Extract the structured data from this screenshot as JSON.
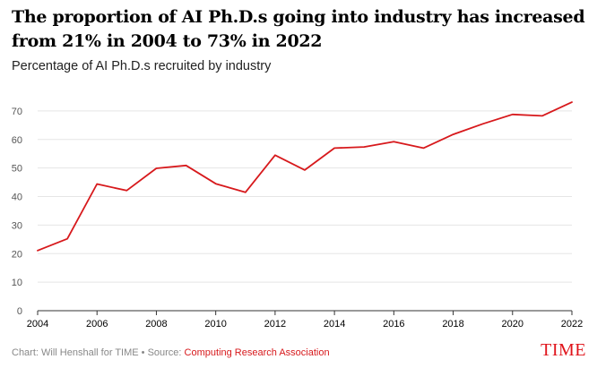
{
  "chart_data": {
    "type": "line",
    "title": "The proportion of AI Ph.D.s going into industry has increased from 21% in 2004 to 73% in 2022",
    "subtitle": "Percentage of AI Ph.D.s recruited by industry",
    "xlabel": "",
    "ylabel": "",
    "x": [
      2004,
      2005,
      2006,
      2007,
      2008,
      2009,
      2010,
      2011,
      2012,
      2013,
      2014,
      2015,
      2016,
      2017,
      2018,
      2019,
      2020,
      2021,
      2022
    ],
    "series": [
      {
        "name": "Percentage of AI Ph.D.s recruited by industry",
        "color": "#d7191c",
        "values": [
          21.1,
          25.2,
          44.4,
          42.1,
          49.9,
          50.9,
          44.5,
          41.5,
          54.5,
          49.3,
          57.0,
          57.4,
          59.2,
          57.0,
          61.8,
          65.5,
          68.8,
          68.3,
          73.1
        ]
      }
    ],
    "ylim": [
      0,
      75
    ],
    "xlim": [
      2004,
      2022
    ],
    "yticks": [
      "0",
      "10",
      "20",
      "30",
      "40",
      "50",
      "60",
      "70"
    ],
    "xticks": [
      "2004",
      "2006",
      "2008",
      "2010",
      "2012",
      "2014",
      "2016",
      "2018",
      "2020",
      "2022"
    ],
    "grid": true
  },
  "footer": {
    "credit": "Chart: Will Henshall for TIME • Source: ",
    "source": "Computing Research Association"
  },
  "logo": "TIME",
  "colors": {
    "line": "#d7191c",
    "grid": "#e5e5e5",
    "axis": "#333333",
    "logo": "#e0131a"
  }
}
